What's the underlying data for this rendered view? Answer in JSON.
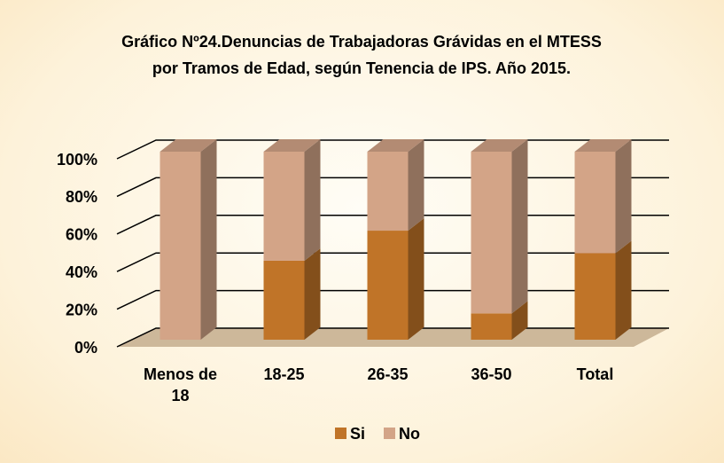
{
  "chart_data": {
    "type": "bar",
    "stacked": true,
    "title": [
      "Gráfico Nº24.Denuncias de Trabajadoras Grávidas en el MTESS",
      "por Tramos de Edad, según Tenencia de IPS. Año 2015."
    ],
    "categories": [
      "Menos de 18",
      "18-25",
      "26-35",
      "36-50",
      "Total"
    ],
    "series": [
      {
        "name": "Si",
        "color": "#c07428",
        "values": [
          0,
          42,
          58,
          14,
          46
        ]
      },
      {
        "name": "No",
        "color": "#d3a487",
        "values": [
          100,
          58,
          42,
          86,
          54
        ]
      }
    ],
    "ylim": [
      0,
      100
    ],
    "yticks": [
      {
        "value": 0,
        "label": "0%"
      },
      {
        "value": 20,
        "label": "20%"
      },
      {
        "value": 40,
        "label": "40%"
      },
      {
        "value": 60,
        "label": "60%"
      },
      {
        "value": 80,
        "label": "80%"
      },
      {
        "value": 100,
        "label": "100%"
      }
    ],
    "grid": true,
    "legend": "bottom"
  }
}
